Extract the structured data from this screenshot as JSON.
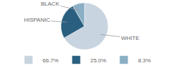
{
  "chart_data": {
    "type": "pie",
    "categories": [
      "66.7%",
      "25.0%",
      "8.3%"
    ],
    "values": [
      66.7,
      25.0,
      8.3
    ],
    "colors": [
      "#c8d4df",
      "#2a5f7f",
      "#8aafc5"
    ],
    "annotations": [
      "WHITE",
      "HISPANIC",
      "BLACK"
    ],
    "legend": "bottom"
  }
}
